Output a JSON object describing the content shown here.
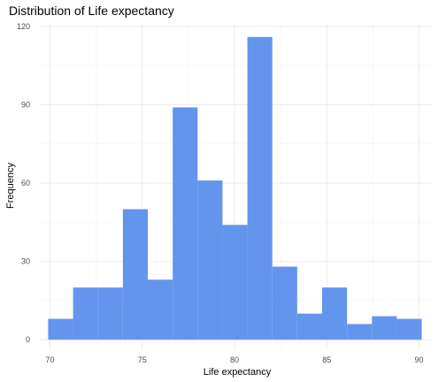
{
  "chart_data": {
    "type": "bar",
    "title": "Distribution of Life expectancy",
    "xlabel": "Life expectancy",
    "ylabel": "Frequency",
    "bin_width": 1.35,
    "bins": [
      {
        "x0": 69.9,
        "x1": 71.25,
        "count": 8
      },
      {
        "x0": 71.25,
        "x1": 72.6,
        "count": 20
      },
      {
        "x0": 72.6,
        "x1": 73.95,
        "count": 20
      },
      {
        "x0": 73.95,
        "x1": 75.3,
        "count": 50
      },
      {
        "x0": 75.3,
        "x1": 76.65,
        "count": 23
      },
      {
        "x0": 76.65,
        "x1": 78.0,
        "count": 89
      },
      {
        "x0": 78.0,
        "x1": 79.35,
        "count": 61
      },
      {
        "x0": 79.35,
        "x1": 80.7,
        "count": 44
      },
      {
        "x0": 80.7,
        "x1": 82.05,
        "count": 116
      },
      {
        "x0": 82.05,
        "x1": 83.4,
        "count": 28
      },
      {
        "x0": 83.4,
        "x1": 84.75,
        "count": 10
      },
      {
        "x0": 84.75,
        "x1": 86.1,
        "count": 20
      },
      {
        "x0": 86.1,
        "x1": 87.45,
        "count": 6
      },
      {
        "x0": 87.45,
        "x1": 88.8,
        "count": 9
      },
      {
        "x0": 88.8,
        "x1": 90.15,
        "count": 8
      }
    ],
    "xticks": [
      70,
      75,
      80,
      85,
      90
    ],
    "yticks": [
      0,
      30,
      60,
      90,
      120
    ],
    "xlim": [
      69.4,
      90.65
    ],
    "ylim": [
      -4,
      121
    ],
    "grid": true,
    "legend": "none",
    "bar_color": "#6495ED",
    "grid_color": "#ebebeb"
  }
}
